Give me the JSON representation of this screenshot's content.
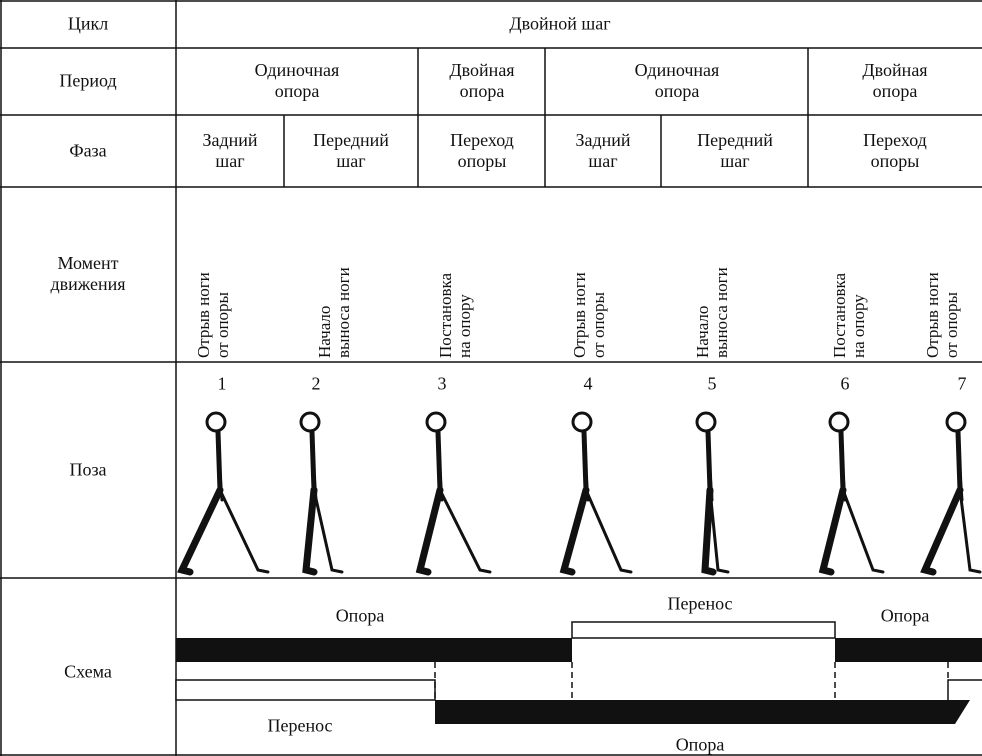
{
  "table": {
    "rows": [
      {
        "label": [
          "Цикл"
        ],
        "cells": [
          [
            "Двойной шаг"
          ]
        ]
      },
      {
        "label": [
          "Период"
        ],
        "cells": [
          [
            "Одиночная",
            "опора"
          ],
          [
            "Двойная",
            "опора"
          ],
          [
            "Одиночная",
            "опора"
          ],
          [
            "Двойная",
            "опора"
          ]
        ]
      },
      {
        "label": [
          "Фаза"
        ],
        "cells": [
          [
            "Задний",
            "шаг"
          ],
          [
            "Передний",
            "шаг"
          ],
          [
            "Переход",
            "опоры"
          ],
          [
            "Задний",
            "шаг"
          ],
          [
            "Передний",
            "шаг"
          ],
          [
            "Переход",
            "опоры"
          ]
        ]
      },
      {
        "label": [
          "Момент",
          "движения"
        ],
        "cells": [
          [
            "Отрыв ноги",
            "от опоры"
          ],
          [
            "Начало",
            "выноса ноги"
          ],
          [
            "Постановка",
            "на опору"
          ],
          [
            "Отрыв ноги",
            "от опоры"
          ],
          [
            "Начало",
            "выноса ноги"
          ],
          [
            "Постановка",
            "на опору"
          ],
          [
            "Отрыв ноги",
            "от опоры"
          ]
        ]
      },
      {
        "label": [
          "Поза"
        ],
        "cells": [
          1,
          2,
          3,
          4,
          5,
          6,
          7
        ]
      },
      {
        "label": [
          "Схема"
        ],
        "cells": [
          "Опора",
          "Перенос",
          "Опора",
          "Перенос",
          "Опора"
        ]
      }
    ]
  }
}
